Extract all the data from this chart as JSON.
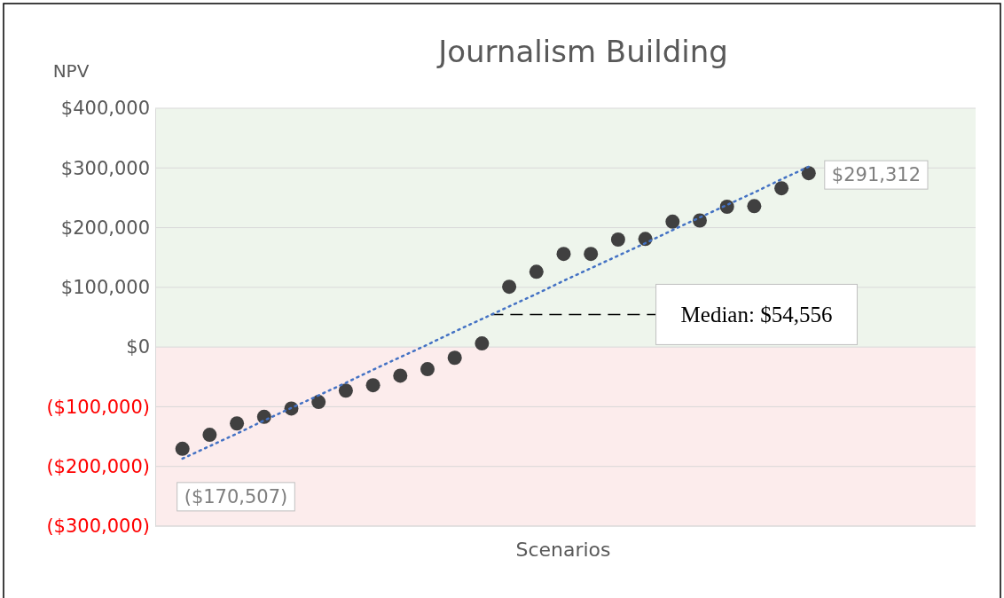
{
  "chart_data": {
    "type": "scatter",
    "title": "Journalism Building",
    "ylabel": "NPV",
    "xlabel": "Scenarios",
    "categories": [
      null,
      null,
      null,
      null,
      null,
      null,
      null,
      null,
      null,
      null,
      null,
      null,
      null,
      null,
      null,
      null,
      null,
      null,
      null,
      null,
      null,
      null,
      null,
      null
    ],
    "ylim": [
      -300000,
      400000
    ],
    "yticks": [
      {
        "value": -300000,
        "label": "($300,000)"
      },
      {
        "value": -200000,
        "label": "($200,000)"
      },
      {
        "value": -100000,
        "label": "($100,000)"
      },
      {
        "value": 0,
        "label": "$0"
      },
      {
        "value": 100000,
        "label": "$100,000"
      },
      {
        "value": 200000,
        "label": "$200,000"
      },
      {
        "value": 300000,
        "label": "$300,000"
      },
      {
        "value": 400000,
        "label": "$400,000"
      }
    ],
    "grid": "y",
    "series": [
      {
        "marker": "circle",
        "color": "#404040",
        "values": [
          -170507,
          -147000,
          -128000,
          -117000,
          -103000,
          -92000,
          -73000,
          -64000,
          -48000,
          -37000,
          -18000,
          6000,
          101000,
          126000,
          156000,
          156000,
          180000,
          181000,
          210000,
          212000,
          235000,
          236000,
          266000,
          291312
        ]
      },
      {
        "type": "line",
        "marker": "none",
        "color": "#4472c4",
        "line_style": "dotted",
        "values": [
          -187000,
          -166000,
          -145000,
          -123000,
          -102000,
          -81000,
          -60000,
          -38000,
          -17000,
          4000,
          26000,
          47000,
          68000,
          89000,
          111000,
          132000,
          153000,
          174000,
          196000,
          217000,
          238000,
          259000,
          281000,
          302000
        ]
      }
    ],
    "bands": [
      {
        "axis": "y",
        "from": 0,
        "to": 400000,
        "color": "#eef5ec"
      },
      {
        "axis": "y",
        "from": -300000,
        "to": 0,
        "color": "#fcecec"
      }
    ],
    "ref_lines": [
      {
        "axis": "y",
        "value": 54556,
        "label": "Median: $54,556",
        "color": "#000000",
        "line_style": "dashed"
      }
    ],
    "annotations": [
      "$291,312",
      "($170,507)"
    ]
  }
}
